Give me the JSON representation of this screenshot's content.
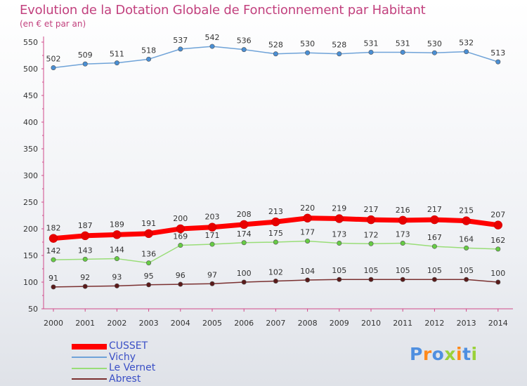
{
  "title": "Evolution de la Dotation Globale de Fonctionnement par Habitant",
  "subtitle": "(en € et par an)",
  "logo": "Proxiti",
  "chart_data": {
    "type": "line",
    "title": "Evolution de la Dotation Globale de Fonctionnement par Habitant",
    "subtitle": "(en € et par an)",
    "xlabel": "",
    "ylabel": "",
    "ylim": [
      50,
      550
    ],
    "yticks": [
      50,
      100,
      150,
      200,
      250,
      300,
      350,
      400,
      450,
      500,
      550
    ],
    "x": [
      "2000",
      "2001",
      "2002",
      "2003",
      "2004",
      "2005",
      "2006",
      "2007",
      "2008",
      "2009",
      "2010",
      "2011",
      "2012",
      "2013",
      "2014"
    ],
    "grid": false,
    "legend_position": "bottom-left",
    "series": [
      {
        "name": "Vichy",
        "color": "#6fa3d8",
        "marker": "#4a8fd4",
        "values": [
          502,
          509,
          511,
          518,
          537,
          542,
          536,
          528,
          530,
          528,
          531,
          531,
          530,
          532,
          513
        ]
      },
      {
        "name": "CUSSET",
        "color": "#ff0000",
        "marker": "#e80000",
        "values": [
          182,
          187,
          189,
          191,
          200,
          203,
          208,
          213,
          220,
          219,
          217,
          216,
          217,
          215,
          207
        ]
      },
      {
        "name": "Le Vernet",
        "color": "#99dd77",
        "marker": "#66cc44",
        "values": [
          142,
          143,
          144,
          136,
          169,
          171,
          174,
          175,
          177,
          173,
          172,
          173,
          167,
          164,
          162
        ]
      },
      {
        "name": "Abrest",
        "color": "#7a3030",
        "marker": "#5a1a1a",
        "values": [
          91,
          92,
          93,
          95,
          96,
          97,
          100,
          102,
          104,
          105,
          105,
          105,
          105,
          105,
          100
        ]
      }
    ],
    "legend": [
      {
        "name": "CUSSET",
        "color": "#ff0000"
      },
      {
        "name": "Vichy",
        "color": "#6fa3d8"
      },
      {
        "name": "Le Vernet",
        "color": "#99dd77"
      },
      {
        "name": "Abrest",
        "color": "#7a3030"
      }
    ]
  }
}
